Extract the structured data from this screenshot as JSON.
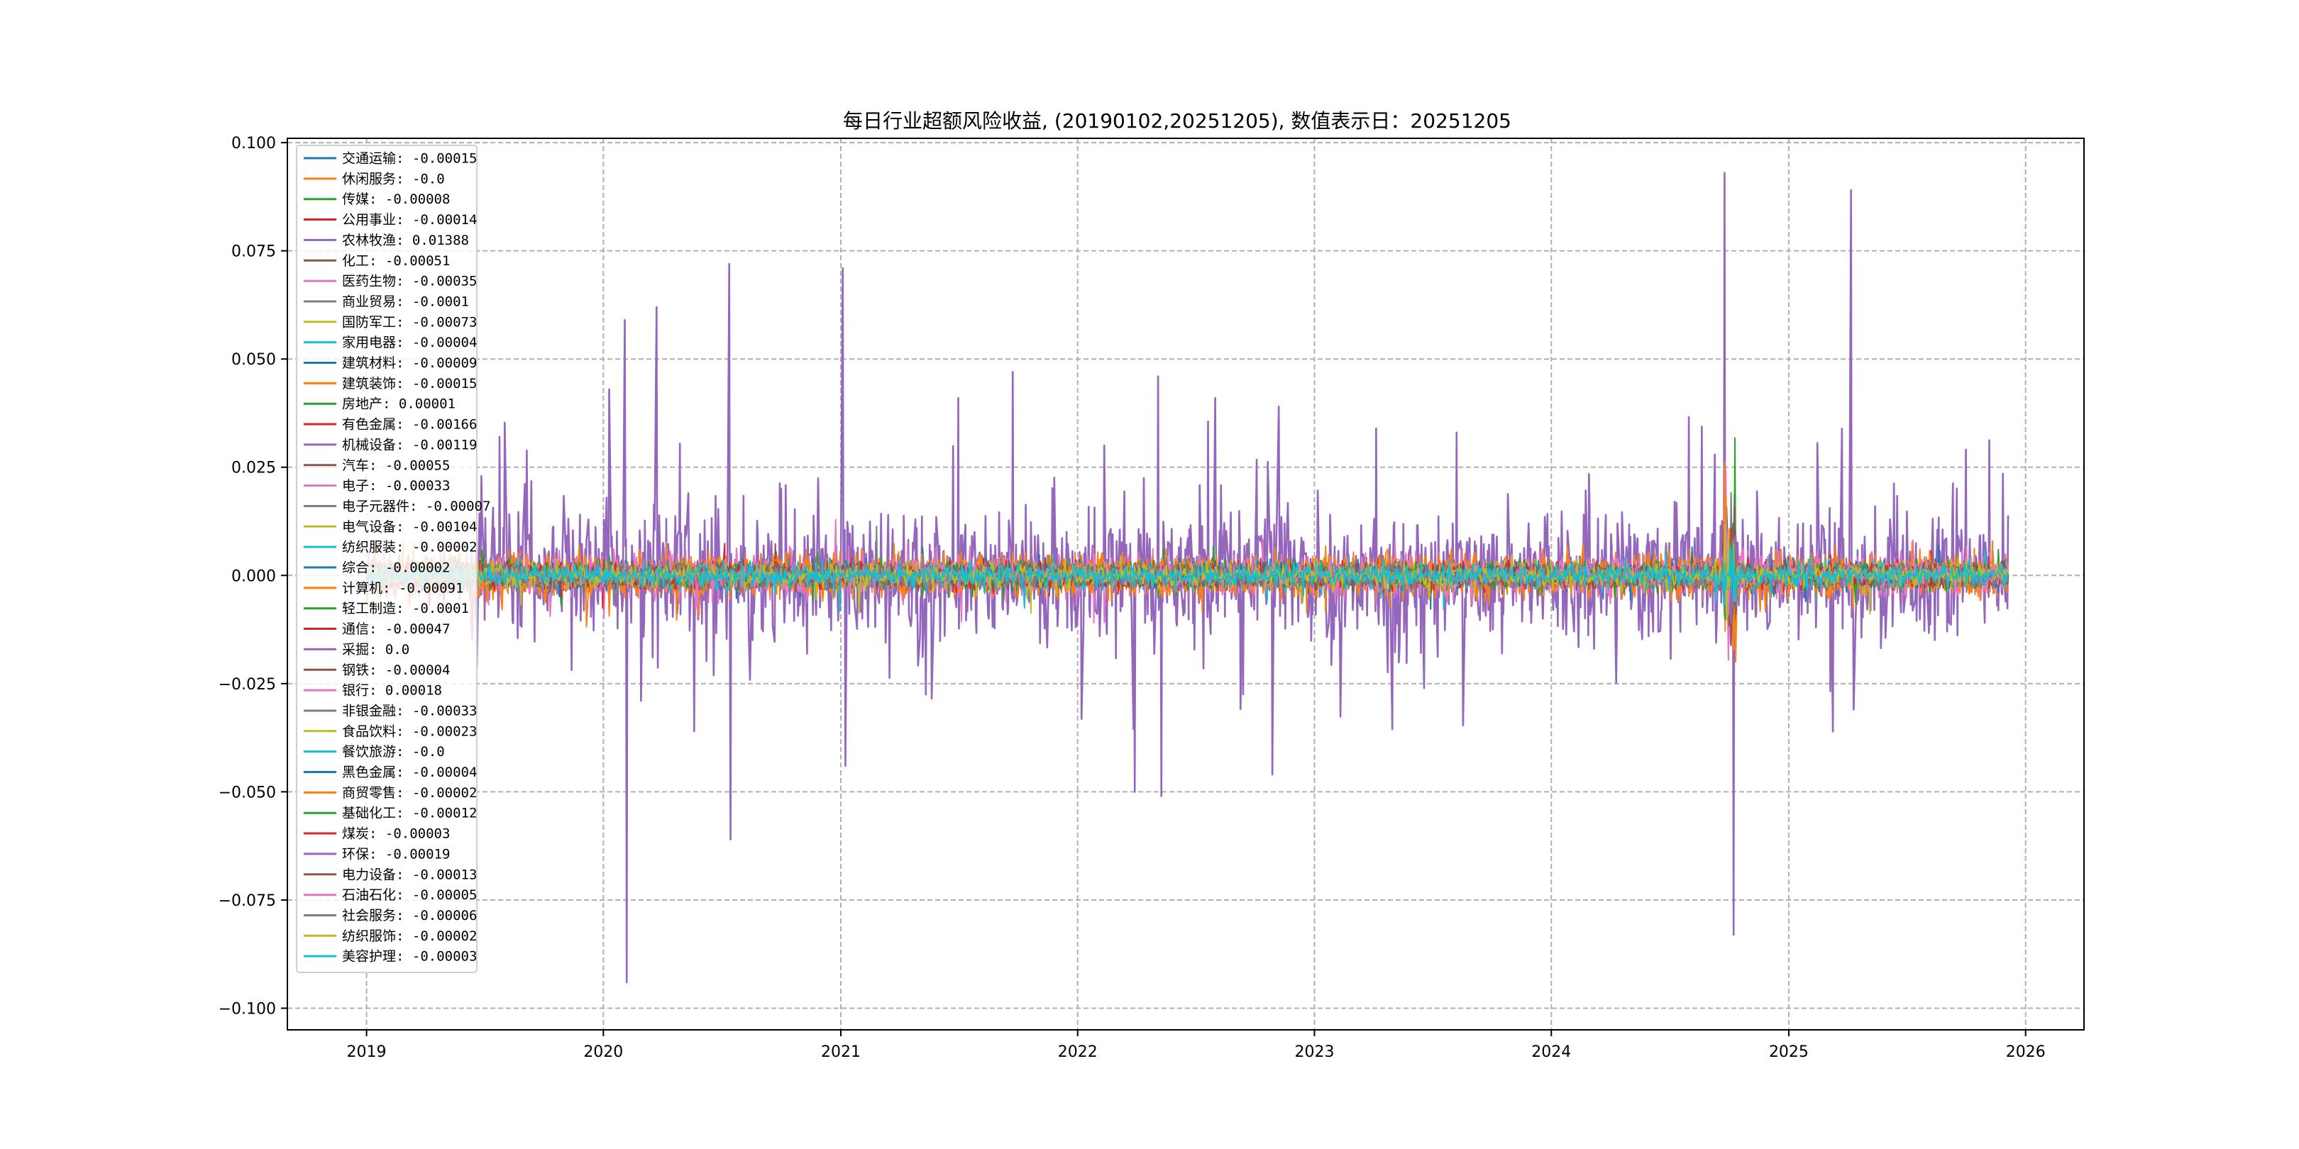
{
  "chart_data": {
    "type": "line",
    "title": "每日行业超额风险收益, (20190102,20251205),  数值表示日：20251205",
    "xlabel": "",
    "ylabel": "",
    "x_range": [
      "2018-09-01",
      "2026-04-01"
    ],
    "ylim": [
      -0.105,
      0.101
    ],
    "x_ticks": [
      "2019",
      "2020",
      "2021",
      "2022",
      "2023",
      "2024",
      "2025",
      "2026"
    ],
    "y_ticks": [
      0.1,
      0.075,
      0.05,
      0.025,
      0.0,
      -0.025,
      -0.05,
      -0.075,
      -0.1
    ],
    "y_tick_labels": [
      "0.100",
      "0.075",
      "0.050",
      "0.025",
      "0.000",
      "−0.025",
      "−0.050",
      "−0.075",
      "−0.100"
    ],
    "grid": true,
    "legend_position": "upper-left",
    "series": [
      {
        "name": "交通运输",
        "last_value": -0.00015,
        "color": "#1f77b4",
        "amp": 0.0015
      },
      {
        "name": "休闲服务",
        "last_value": -0.0,
        "color": "#ff7f0e",
        "amp": 0.002
      },
      {
        "name": "传媒",
        "last_value": -8e-05,
        "color": "#2ca02c",
        "amp": 0.0012
      },
      {
        "name": "公用事业",
        "last_value": -0.00014,
        "color": "#d62728",
        "amp": 0.0012
      },
      {
        "name": "农林牧渔",
        "last_value": 0.01388,
        "color": "#9467bd",
        "amp": 0.01
      },
      {
        "name": "化工",
        "last_value": -0.00051,
        "color": "#8c564b",
        "amp": 0.0012
      },
      {
        "name": "医药生物",
        "last_value": -0.00035,
        "color": "#e377c2",
        "amp": 0.0025
      },
      {
        "name": "商业贸易",
        "last_value": -0.0001,
        "color": "#7f7f7f",
        "amp": 0.0012
      },
      {
        "name": "国防军工",
        "last_value": -0.00073,
        "color": "#bcbd22",
        "amp": 0.0012
      },
      {
        "name": "家用电器",
        "last_value": -4e-05,
        "color": "#17becf",
        "amp": 0.0012
      },
      {
        "name": "建筑材料",
        "last_value": -9e-05,
        "color": "#1f77b4",
        "amp": 0.0012
      },
      {
        "name": "建筑装饰",
        "last_value": -0.00015,
        "color": "#ff7f0e",
        "amp": 0.0018
      },
      {
        "name": "房地产",
        "last_value": 1e-05,
        "color": "#2ca02c",
        "amp": 0.0012
      },
      {
        "name": "有色金属",
        "last_value": -0.00166,
        "color": "#d62728",
        "amp": 0.0012
      },
      {
        "name": "机械设备",
        "last_value": -0.00119,
        "color": "#9467bd",
        "amp": 0.0012
      },
      {
        "name": "汽车",
        "last_value": -0.00055,
        "color": "#8c564b",
        "amp": 0.0012
      },
      {
        "name": "电子",
        "last_value": -0.00033,
        "color": "#e377c2",
        "amp": 0.002
      },
      {
        "name": "电子元器件",
        "last_value": -7e-05,
        "color": "#7f7f7f",
        "amp": 0.0012
      },
      {
        "name": "电气设备",
        "last_value": -0.00104,
        "color": "#bcbd22",
        "amp": 0.0012
      },
      {
        "name": "纺织服装",
        "last_value": -2e-05,
        "color": "#17becf",
        "amp": 0.0012
      },
      {
        "name": "综合",
        "last_value": -2e-05,
        "color": "#1f77b4",
        "amp": 0.0012
      },
      {
        "name": "计算机",
        "last_value": -0.00091,
        "color": "#ff7f0e",
        "amp": 0.0025
      },
      {
        "name": "轻工制造",
        "last_value": -0.0001,
        "color": "#2ca02c",
        "amp": 0.0012
      },
      {
        "name": "通信",
        "last_value": -0.00047,
        "color": "#d62728",
        "amp": 0.0012
      },
      {
        "name": "采掘",
        "last_value": 0.0,
        "color": "#9467bd",
        "amp": 0.0012
      },
      {
        "name": "钢铁",
        "last_value": -4e-05,
        "color": "#8c564b",
        "amp": 0.0012
      },
      {
        "name": "银行",
        "last_value": 0.00018,
        "color": "#e377c2",
        "amp": 0.0012
      },
      {
        "name": "非银金融",
        "last_value": -0.00033,
        "color": "#7f7f7f",
        "amp": 0.0012
      },
      {
        "name": "食品饮料",
        "last_value": -0.00023,
        "color": "#bcbd22",
        "amp": 0.0012
      },
      {
        "name": "餐饮旅游",
        "last_value": -0.0,
        "color": "#17becf",
        "amp": 0.0012
      },
      {
        "name": "黑色金属",
        "last_value": -4e-05,
        "color": "#1f77b4",
        "amp": 0.0012
      },
      {
        "name": "商贸零售",
        "last_value": -2e-05,
        "color": "#ff7f0e",
        "amp": 0.0012
      },
      {
        "name": "基础化工",
        "last_value": -0.00012,
        "color": "#2ca02c",
        "amp": 0.0012
      },
      {
        "name": "煤炭",
        "last_value": -3e-05,
        "color": "#d62728",
        "amp": 0.0012
      },
      {
        "name": "环保",
        "last_value": -0.00019,
        "color": "#9467bd",
        "amp": 0.0012
      },
      {
        "name": "电力设备",
        "last_value": -0.00013,
        "color": "#8c564b",
        "amp": 0.0012
      },
      {
        "name": "石油石化",
        "last_value": -5e-05,
        "color": "#e377c2",
        "amp": 0.0012
      },
      {
        "name": "社会服务",
        "last_value": -6e-05,
        "color": "#7f7f7f",
        "amp": 0.0012
      },
      {
        "name": "纺织服饰",
        "last_value": -2e-05,
        "color": "#bcbd22",
        "amp": 0.0012
      },
      {
        "name": "美容护理",
        "last_value": -3e-05,
        "color": "#17becf",
        "amp": 0.0012
      }
    ],
    "highlighted_series": "农林牧渔",
    "highlighted_peaks": [
      {
        "x": "2019-07-25",
        "y": 0.032
      },
      {
        "x": "2020-01-10",
        "y": 0.043
      },
      {
        "x": "2020-02-03",
        "y": 0.059
      },
      {
        "x": "2020-02-06",
        "y": -0.094
      },
      {
        "x": "2020-03-23",
        "y": 0.062
      },
      {
        "x": "2020-05-20",
        "y": -0.036
      },
      {
        "x": "2020-07-13",
        "y": 0.072
      },
      {
        "x": "2020-07-15",
        "y": -0.061
      },
      {
        "x": "2021-01-04",
        "y": 0.071
      },
      {
        "x": "2021-01-08",
        "y": -0.044
      },
      {
        "x": "2021-07-01",
        "y": 0.041
      },
      {
        "x": "2021-09-23",
        "y": 0.047
      },
      {
        "x": "2022-03-30",
        "y": -0.05
      },
      {
        "x": "2022-05-05",
        "y": 0.046
      },
      {
        "x": "2022-05-10",
        "y": -0.051
      },
      {
        "x": "2022-08-01",
        "y": 0.041
      },
      {
        "x": "2022-10-28",
        "y": -0.046
      },
      {
        "x": "2022-11-07",
        "y": 0.039
      },
      {
        "x": "2023-08-08",
        "y": 0.033
      },
      {
        "x": "2024-09-24",
        "y": 0.093
      },
      {
        "x": "2024-10-08",
        "y": -0.083
      },
      {
        "x": "2025-04-07",
        "y": 0.089
      },
      {
        "x": "2025-04-11",
        "y": -0.031
      }
    ]
  }
}
